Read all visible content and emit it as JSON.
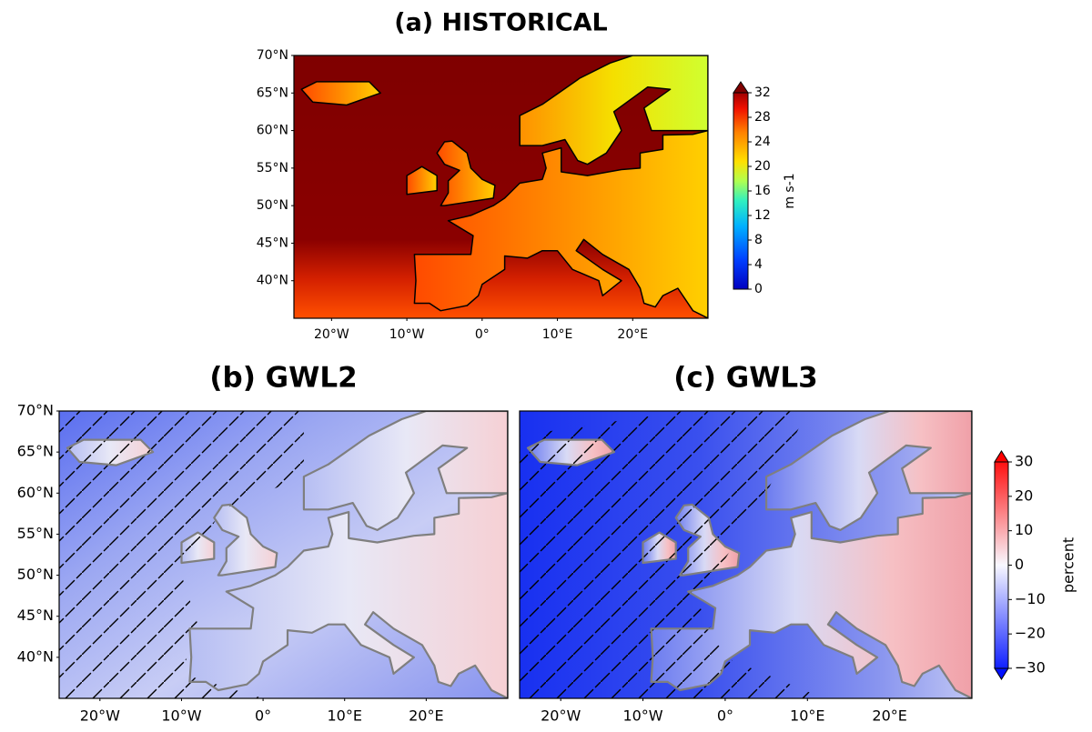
{
  "panels": [
    {
      "title": "(a) HISTORICAL",
      "lonlim": [
        -25,
        30
      ],
      "latlim": [
        35,
        70
      ],
      "lat_ticks": [
        {
          "value": 70,
          "label": "70°N"
        },
        {
          "value": 65,
          "label": "65°N"
        },
        {
          "value": 60,
          "label": "60°N"
        },
        {
          "value": 55,
          "label": "55°N"
        },
        {
          "value": 50,
          "label": "50°N"
        },
        {
          "value": 45,
          "label": "45°N"
        },
        {
          "value": 40,
          "label": "40°N"
        }
      ],
      "lon_ticks": [
        {
          "value": -20,
          "label": "20°W"
        },
        {
          "value": -10,
          "label": "10°W"
        },
        {
          "value": 0,
          "label": "0°"
        },
        {
          "value": 10,
          "label": "10°E"
        },
        {
          "value": 20,
          "label": "20°E"
        }
      ]
    },
    {
      "title": "(b) GWL2",
      "lonlim": [
        -25,
        30
      ],
      "latlim": [
        35,
        70
      ],
      "lat_ticks": [
        {
          "value": 70,
          "label": "70°N"
        },
        {
          "value": 65,
          "label": "65°N"
        },
        {
          "value": 60,
          "label": "60°N"
        },
        {
          "value": 55,
          "label": "55°N"
        },
        {
          "value": 50,
          "label": "50°N"
        },
        {
          "value": 45,
          "label": "45°N"
        },
        {
          "value": 40,
          "label": "40°N"
        }
      ],
      "lon_ticks": [
        {
          "value": -20,
          "label": "20°W"
        },
        {
          "value": -10,
          "label": "10°W"
        },
        {
          "value": 0,
          "label": "0°"
        },
        {
          "value": 10,
          "label": "10°E"
        },
        {
          "value": 20,
          "label": "20°E"
        }
      ]
    },
    {
      "title": "(c) GWL3",
      "lonlim": [
        -25,
        30
      ],
      "latlim": [
        35,
        70
      ],
      "lat_ticks": [],
      "lon_ticks": [
        {
          "value": -20,
          "label": "20°W"
        },
        {
          "value": -10,
          "label": "10°W"
        },
        {
          "value": 0,
          "label": "0°"
        },
        {
          "value": 10,
          "label": "10°E"
        },
        {
          "value": 20,
          "label": "20°E"
        }
      ]
    }
  ],
  "colorbars": [
    {
      "label": "m s-1",
      "lim": [
        0,
        32
      ],
      "ticks": [
        0,
        4,
        8,
        12,
        16,
        20,
        24,
        28,
        32
      ]
    },
    {
      "label": "percent",
      "lim": [
        -30,
        30
      ],
      "ticks": [
        {
          "value": -30,
          "label": "−30"
        },
        {
          "value": -20,
          "label": "−20"
        },
        {
          "value": -10,
          "label": "−10"
        },
        0,
        10,
        20,
        30
      ]
    }
  ]
}
